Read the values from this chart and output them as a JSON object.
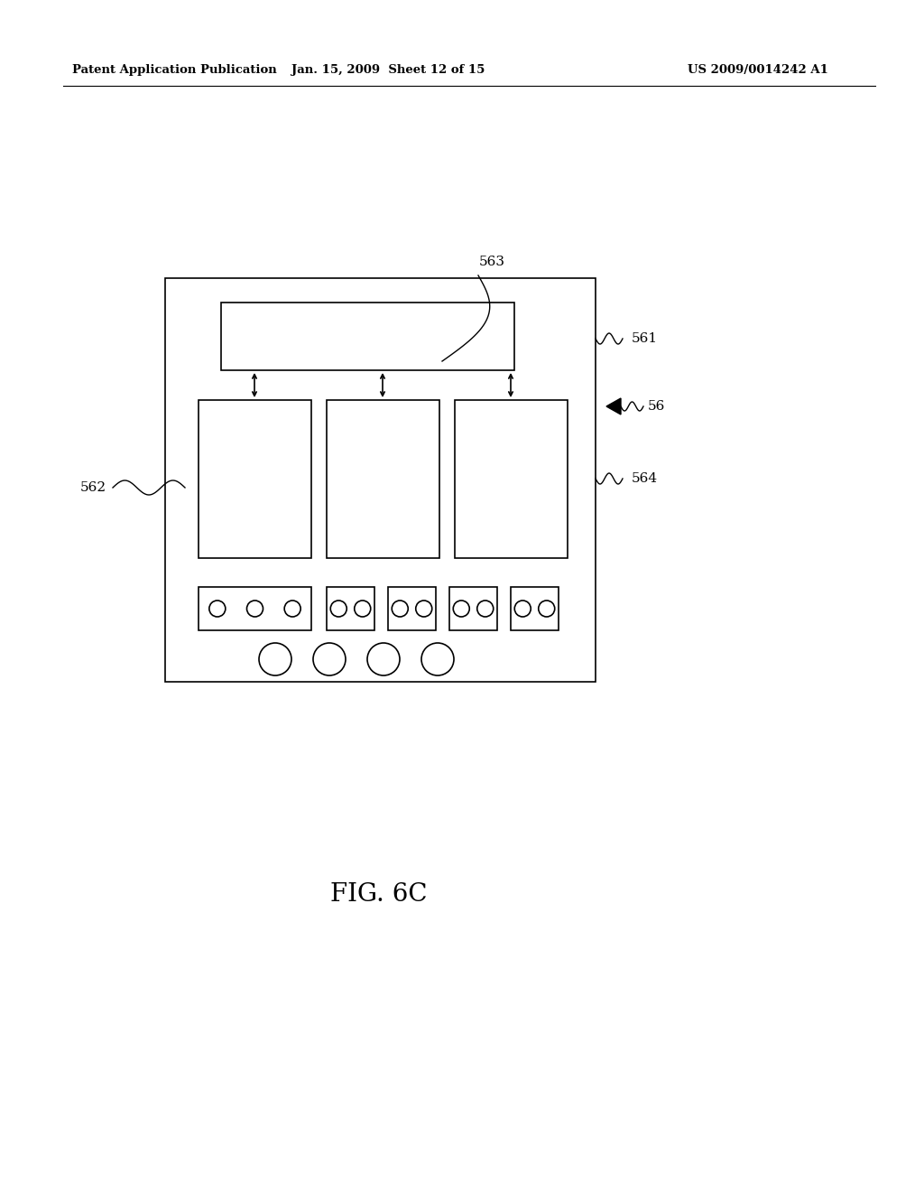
{
  "bg_color": "#ffffff",
  "header_left": "Patent Application Publication",
  "header_mid": "Jan. 15, 2009  Sheet 12 of 15",
  "header_right": "US 2009/0014242 A1",
  "fig_caption": "FIG. 6C",
  "line_color": "#000000",
  "lw": 1.2
}
